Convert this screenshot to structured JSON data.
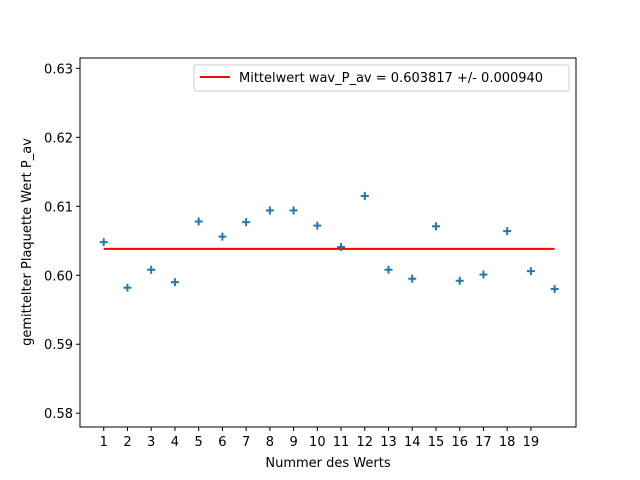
{
  "chart_data": {
    "type": "scatter",
    "title": "",
    "xlabel": "Nummer des Werts",
    "ylabel": "gemittelter Plaquette Wert P_av",
    "xlim": [
      0.0,
      20.9
    ],
    "ylim": [
      0.578,
      0.6315
    ],
    "x_ticks": [
      1,
      2,
      3,
      4,
      5,
      6,
      7,
      8,
      9,
      10,
      11,
      12,
      13,
      14,
      15,
      16,
      17,
      18,
      19
    ],
    "y_ticks": [
      0.58,
      0.59,
      0.6,
      0.61,
      0.62,
      0.63
    ],
    "y_tick_labels": [
      "0.58",
      "0.59",
      "0.60",
      "0.61",
      "0.62",
      "0.63"
    ],
    "grid": false,
    "legend_position": "top-right",
    "series": [
      {
        "name": "",
        "kind": "scatter",
        "marker": "plus",
        "color": "#1f77b4",
        "x": [
          1,
          2,
          3,
          4,
          5,
          6,
          7,
          8,
          9,
          10,
          11,
          12,
          13,
          14,
          15,
          16,
          17,
          18,
          19,
          20
        ],
        "y": [
          0.6048,
          0.5982,
          0.6008,
          0.599,
          0.6078,
          0.6056,
          0.6077,
          0.6094,
          0.6094,
          0.6072,
          0.6041,
          0.6115,
          0.6008,
          0.5995,
          0.6071,
          0.5992,
          0.6001,
          0.6064,
          0.6006,
          0.598
        ]
      },
      {
        "name": "Mittelwert wav_P_av = 0.603817 +/- 0.000940",
        "kind": "line",
        "color": "#ff0000",
        "x": [
          1,
          20
        ],
        "y": [
          0.603817,
          0.603817
        ]
      }
    ]
  }
}
